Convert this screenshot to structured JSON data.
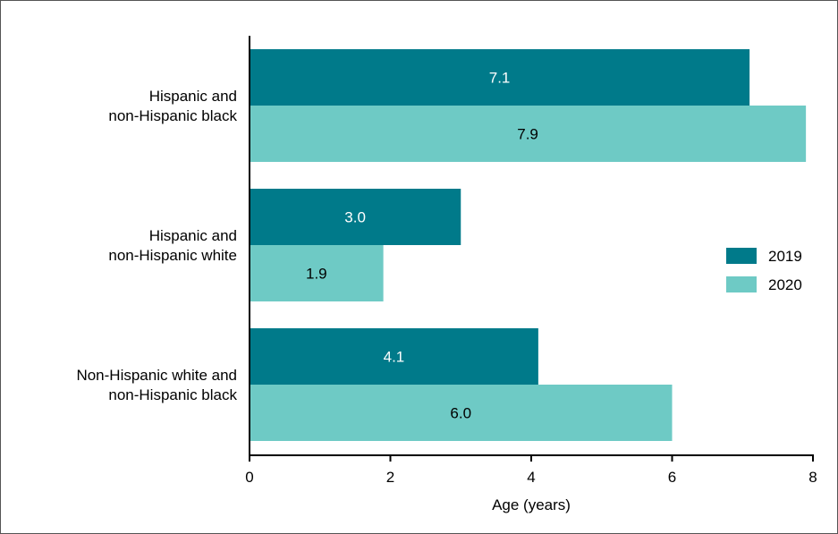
{
  "chart_data": {
    "type": "bar",
    "orientation": "horizontal",
    "categories": [
      [
        "Hispanic and",
        "non-Hispanic black"
      ],
      [
        "Hispanic and",
        "non-Hispanic white"
      ],
      [
        "Non-Hispanic white and",
        "non-Hispanic black"
      ]
    ],
    "series": [
      {
        "name": "2019",
        "values": [
          7.1,
          3.0,
          4.1
        ],
        "value_labels": [
          "7.1",
          "3.0",
          "4.1"
        ],
        "color": "#007A8A",
        "label_color": "#ffffff"
      },
      {
        "name": "2020",
        "values": [
          7.9,
          1.9,
          6.0
        ],
        "value_labels": [
          "7.9",
          "1.9",
          "6.0"
        ],
        "color": "#6ECAC5",
        "label_color": "#000000"
      }
    ],
    "xlabel": "Age (years)",
    "ylabel": "",
    "xlim": [
      0,
      8
    ],
    "xticks": [
      "0",
      "2",
      "4",
      "6",
      "8"
    ],
    "grid": false,
    "legend_position": "right"
  }
}
